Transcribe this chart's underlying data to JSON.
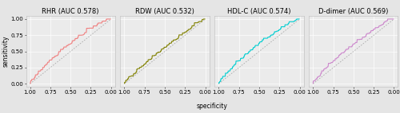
{
  "panels": [
    {
      "title": "RHR (AUC 0.578)",
      "color": "#F08080",
      "auc": 0.578,
      "seed": 42
    },
    {
      "title": "RDW (AUC 0.532)",
      "color": "#808000",
      "auc": 0.532,
      "seed": 123
    },
    {
      "title": "HDL-C (AUC 0.574)",
      "color": "#00CED1",
      "auc": 0.574,
      "seed": 77
    },
    {
      "title": "D-dimer (AUC 0.569)",
      "color": "#CC88CC",
      "auc": 0.569,
      "seed": 99
    }
  ],
  "bg_color": "#E5E5E5",
  "plot_bg_color": "#EBEBEB",
  "grid_color": "#FFFFFF",
  "diag_color": "#AAAAAA",
  "xlabel": "specificity",
  "ylabel": "sensitivity",
  "title_fontsize": 6.0,
  "label_fontsize": 5.5,
  "tick_fontsize": 5.0,
  "linewidth": 0.8,
  "diag_linewidth": 0.6
}
